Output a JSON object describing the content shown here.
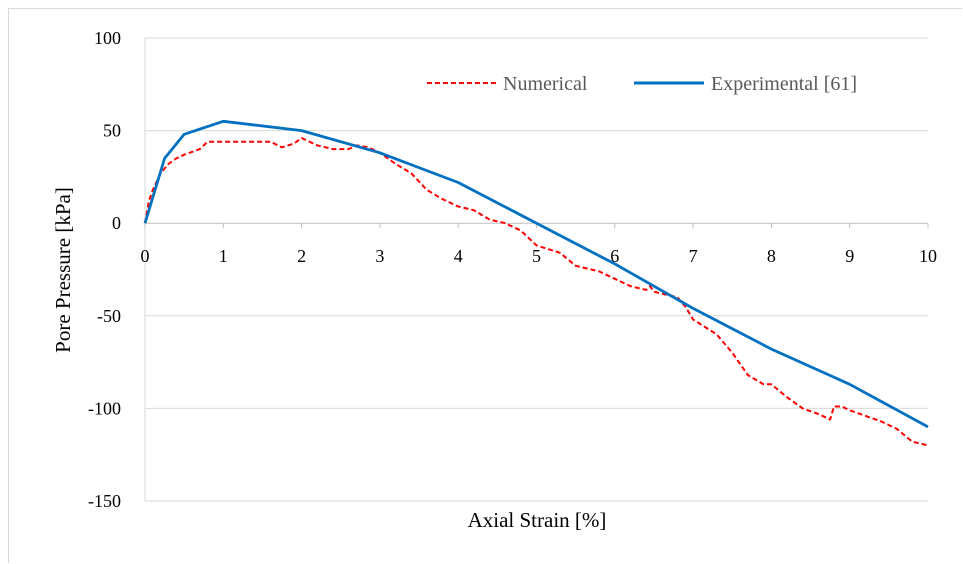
{
  "chart_data": {
    "type": "line",
    "title": "",
    "xlabel": "Axial Strain [%]",
    "ylabel": "Pore  Pressure [kPa]",
    "xlim": [
      0,
      10
    ],
    "ylim": [
      -150,
      100
    ],
    "x_ticks": [
      0,
      1,
      2,
      3,
      4,
      5,
      6,
      7,
      8,
      9,
      10
    ],
    "y_ticks": [
      -150,
      -100,
      -50,
      0,
      50,
      100
    ],
    "grid": true,
    "legend_position": "top-right",
    "series": [
      {
        "name": "Numerical",
        "color": "#ff0000",
        "line_style": "dashed",
        "points": [
          [
            0,
            0
          ],
          [
            0.05,
            12
          ],
          [
            0.1,
            18
          ],
          [
            0.2,
            27
          ],
          [
            0.3,
            32
          ],
          [
            0.4,
            35
          ],
          [
            0.5,
            37
          ],
          [
            0.6,
            38.5
          ],
          [
            0.7,
            40
          ],
          [
            0.8,
            44
          ],
          [
            0.9,
            44
          ],
          [
            1.0,
            44
          ],
          [
            1.2,
            44
          ],
          [
            1.4,
            44
          ],
          [
            1.6,
            44
          ],
          [
            1.75,
            41
          ],
          [
            1.9,
            43
          ],
          [
            2.0,
            46
          ],
          [
            2.2,
            42
          ],
          [
            2.4,
            40
          ],
          [
            2.6,
            40
          ],
          [
            2.7,
            42
          ],
          [
            2.85,
            41
          ],
          [
            3.0,
            38
          ],
          [
            3.2,
            32
          ],
          [
            3.4,
            27
          ],
          [
            3.6,
            18
          ],
          [
            3.8,
            13
          ],
          [
            4.0,
            9
          ],
          [
            4.2,
            7
          ],
          [
            4.4,
            2
          ],
          [
            4.6,
            0
          ],
          [
            4.8,
            -4
          ],
          [
            5.0,
            -12
          ],
          [
            5.3,
            -16
          ],
          [
            5.5,
            -23
          ],
          [
            5.8,
            -26
          ],
          [
            6.0,
            -30
          ],
          [
            6.2,
            -34
          ],
          [
            6.4,
            -36
          ],
          [
            6.45,
            -34
          ],
          [
            6.5,
            -37
          ],
          [
            6.8,
            -40
          ],
          [
            6.9,
            -45
          ],
          [
            7.0,
            -52
          ],
          [
            7.3,
            -60
          ],
          [
            7.5,
            -70
          ],
          [
            7.7,
            -82
          ],
          [
            7.9,
            -87
          ],
          [
            8.0,
            -87
          ],
          [
            8.2,
            -94
          ],
          [
            8.4,
            -100
          ],
          [
            8.6,
            -103
          ],
          [
            8.75,
            -106
          ],
          [
            8.8,
            -99
          ],
          [
            8.9,
            -99
          ],
          [
            9.0,
            -101
          ],
          [
            9.2,
            -104
          ],
          [
            9.4,
            -107
          ],
          [
            9.6,
            -111
          ],
          [
            9.8,
            -118
          ],
          [
            10.0,
            -120
          ]
        ]
      },
      {
        "name": "Experimental [61]",
        "color": "#0070c0",
        "line_style": "solid",
        "points": [
          [
            0,
            0
          ],
          [
            0.25,
            35
          ],
          [
            0.5,
            48
          ],
          [
            1.0,
            55
          ],
          [
            2.0,
            50
          ],
          [
            3.0,
            38
          ],
          [
            4.0,
            22
          ],
          [
            5.0,
            0
          ],
          [
            6.0,
            -22
          ],
          [
            7.0,
            -46
          ],
          [
            8.0,
            -68
          ],
          [
            9.0,
            -87
          ],
          [
            10.0,
            -110
          ]
        ]
      }
    ]
  }
}
